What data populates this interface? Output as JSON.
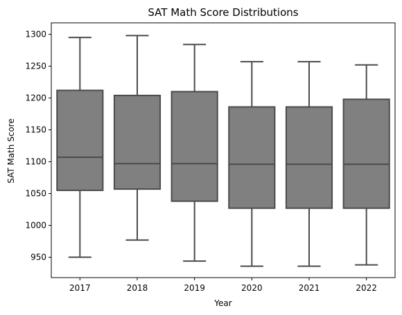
{
  "chart_data": {
    "type": "box",
    "title": "SAT Math Score Distributions",
    "xlabel": "Year",
    "ylabel": "SAT Math Score",
    "categories": [
      "2017",
      "2018",
      "2019",
      "2020",
      "2021",
      "2022"
    ],
    "ylim": [
      918,
      1318
    ],
    "yticks": [
      950,
      1000,
      1050,
      1100,
      1150,
      1200,
      1250,
      1300
    ],
    "box_color": "#808080",
    "line_color": "#4a4a4a",
    "boxes": [
      {
        "category": "2017",
        "whisker_low": 950,
        "q1": 1055,
        "median": 1107,
        "q3": 1212,
        "whisker_high": 1295
      },
      {
        "category": "2018",
        "whisker_low": 977,
        "q1": 1057,
        "median": 1097,
        "q3": 1204,
        "whisker_high": 1298
      },
      {
        "category": "2019",
        "whisker_low": 944,
        "q1": 1038,
        "median": 1097,
        "q3": 1210,
        "whisker_high": 1284
      },
      {
        "category": "2020",
        "whisker_low": 936,
        "q1": 1027,
        "median": 1096,
        "q3": 1186,
        "whisker_high": 1257
      },
      {
        "category": "2021",
        "whisker_low": 936,
        "q1": 1027,
        "median": 1096,
        "q3": 1186,
        "whisker_high": 1257
      },
      {
        "category": "2022",
        "whisker_low": 938,
        "q1": 1027,
        "median": 1096,
        "q3": 1198,
        "whisker_high": 1252
      }
    ]
  }
}
